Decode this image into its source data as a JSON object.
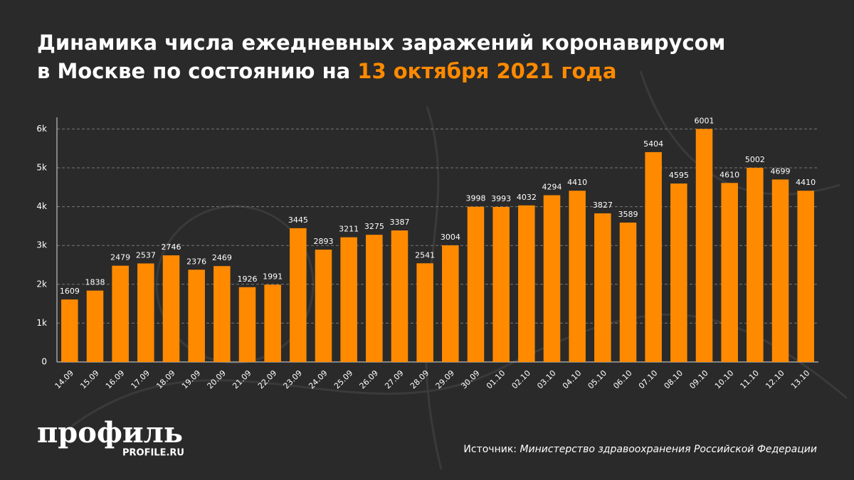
{
  "chart_data": {
    "type": "bar",
    "title": "Динамика числа ежедневных заражений коронавирусом",
    "title_line2": "в Москве по состоянию на",
    "title_date": "13 октября 2021 года",
    "categories": [
      "14.09",
      "15.09",
      "16.09",
      "17.09",
      "18.09",
      "19.09",
      "20.09",
      "21.09",
      "22.09",
      "23.09",
      "24.09",
      "25.09",
      "26.09",
      "27.09",
      "28.09",
      "29.09",
      "30.09",
      "01.10",
      "02.10",
      "03.10",
      "04.10",
      "05.10",
      "06.10",
      "07.10",
      "08.10",
      "09.10",
      "10.10",
      "11.10",
      "12.10",
      "13.10"
    ],
    "values": [
      1609,
      1838,
      2479,
      2537,
      2746,
      2376,
      2469,
      1926,
      1991,
      3445,
      2893,
      3211,
      3275,
      3387,
      2541,
      3004,
      3998,
      3993,
      4032,
      4294,
      4410,
      3827,
      3589,
      5404,
      4595,
      6001,
      4610,
      5002,
      4699,
      4410
    ],
    "color": "#ff8a00",
    "ylim": [
      0,
      6300
    ],
    "yticks": [
      0,
      {
        "value": 1000,
        "label": "1k"
      },
      {
        "value": 2000,
        "label": "2k"
      },
      {
        "value": 3000,
        "label": "3k"
      },
      {
        "value": 4000,
        "label": "4k"
      },
      {
        "value": 5000,
        "label": "5k"
      },
      {
        "value": 6000,
        "label": "6k"
      }
    ],
    "grid": true,
    "source_label": "Источник:",
    "source": "Министерство здравоохранения Российской Федерации",
    "logo": "профиль",
    "logo_site": "PROFILE.RU"
  }
}
